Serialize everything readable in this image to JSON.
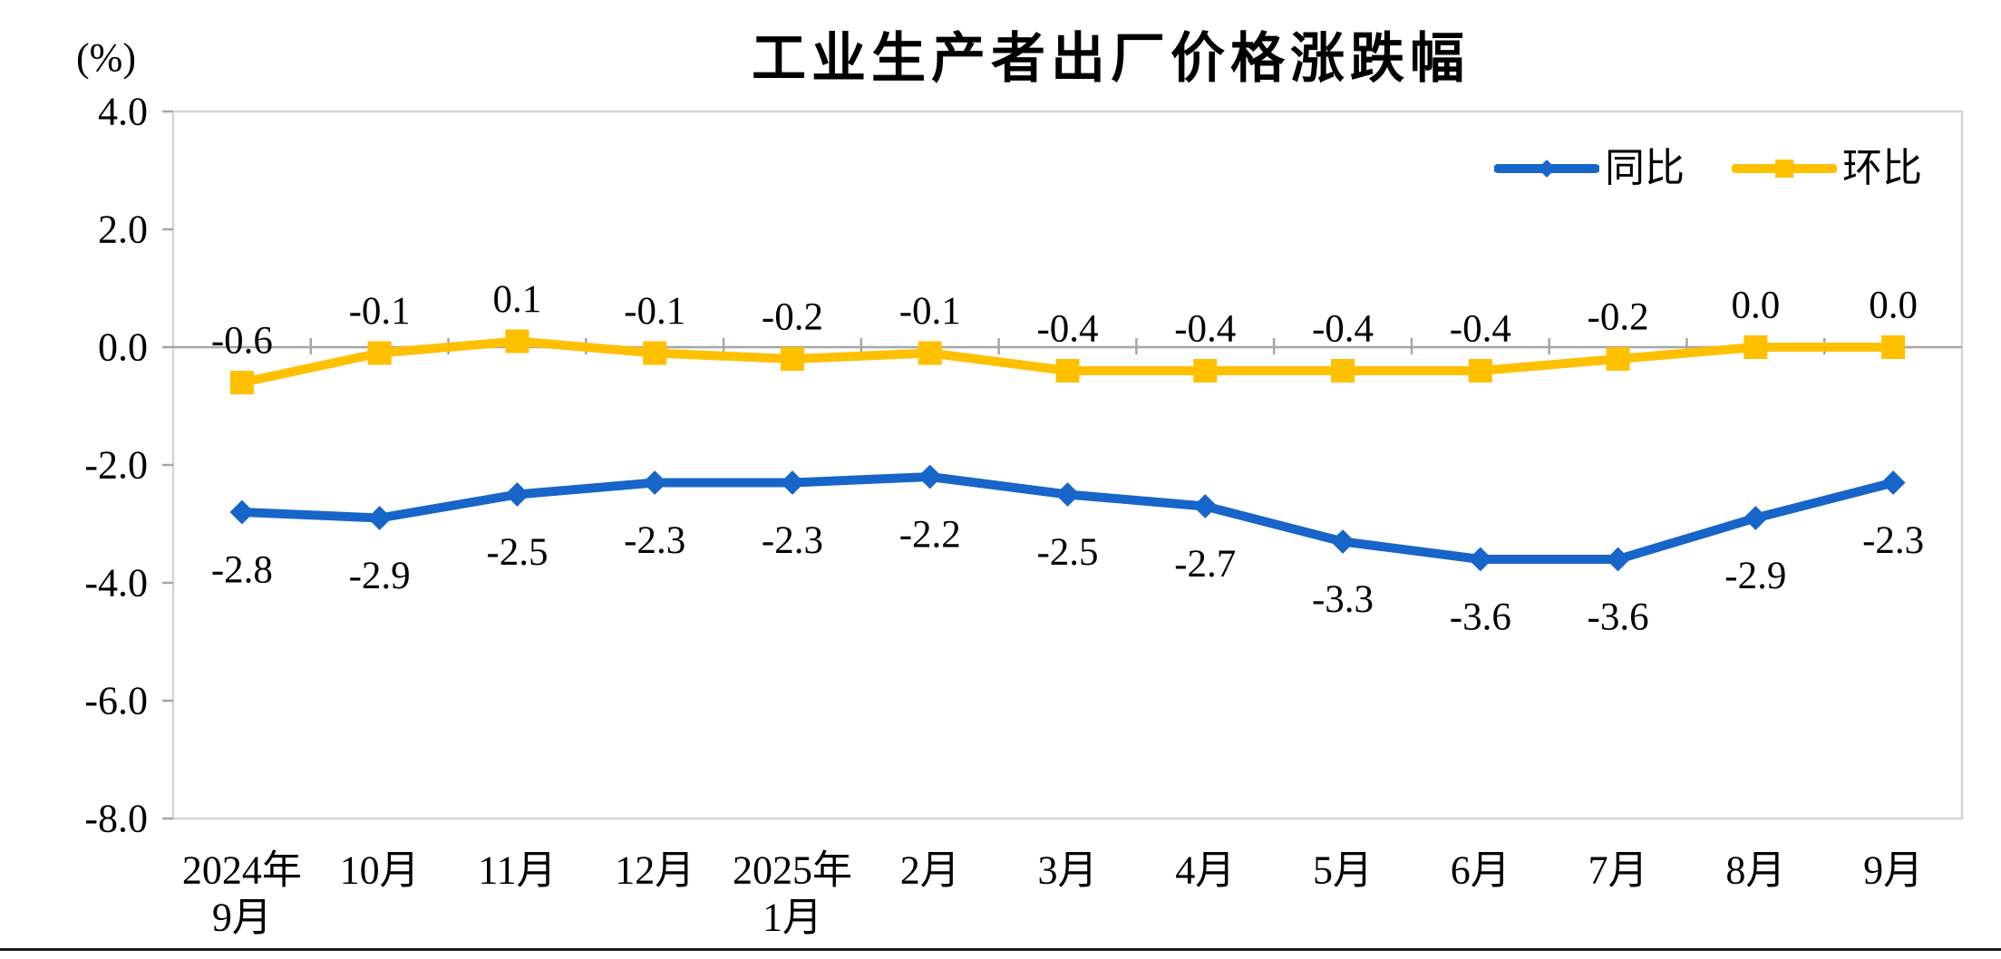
{
  "chart_data": {
    "type": "line",
    "title": "工业生产者出厂价格涨跌幅",
    "y_axis": {
      "unit": "(%)",
      "ticks": [
        "4.0",
        "2.0",
        "0.0",
        "-2.0",
        "-4.0",
        "-6.0",
        "-8.0"
      ],
      "ylim": [
        -8.0,
        4.0
      ]
    },
    "grid": "off",
    "legend_position": "top-right-inside",
    "categories": [
      {
        "lines": [
          "2024年",
          "9月"
        ]
      },
      {
        "lines": [
          "10月"
        ]
      },
      {
        "lines": [
          "11月"
        ]
      },
      {
        "lines": [
          "12月"
        ]
      },
      {
        "lines": [
          "2025年",
          "1月"
        ]
      },
      {
        "lines": [
          "2月"
        ]
      },
      {
        "lines": [
          "3月"
        ]
      },
      {
        "lines": [
          "4月"
        ]
      },
      {
        "lines": [
          "5月"
        ]
      },
      {
        "lines": [
          "6月"
        ]
      },
      {
        "lines": [
          "7月"
        ]
      },
      {
        "lines": [
          "8月"
        ]
      },
      {
        "lines": [
          "9月"
        ]
      }
    ],
    "series": [
      {
        "name": "同比",
        "color": "#1765C8",
        "marker": "diamond",
        "label_position": "below",
        "values": [
          -2.8,
          -2.9,
          -2.5,
          -2.3,
          -2.3,
          -2.2,
          -2.5,
          -2.7,
          -3.3,
          -3.6,
          -3.6,
          -2.9,
          -2.3
        ],
        "labels": [
          "-2.8",
          "-2.9",
          "-2.5",
          "-2.3",
          "-2.3",
          "-2.2",
          "-2.5",
          "-2.7",
          "-3.3",
          "-3.6",
          "-3.6",
          "-2.9",
          "-2.3"
        ]
      },
      {
        "name": "环比",
        "color": "#FFC000",
        "marker": "square",
        "label_position": "above",
        "values": [
          -0.6,
          -0.1,
          0.1,
          -0.1,
          -0.2,
          -0.1,
          -0.4,
          -0.4,
          -0.4,
          -0.4,
          -0.2,
          0.0,
          0.0
        ],
        "labels": [
          "-0.6",
          "-0.1",
          "0.1",
          "-0.1",
          "-0.2",
          "-0.1",
          "-0.4",
          "-0.4",
          "-0.4",
          "-0.4",
          "-0.2",
          "0.0",
          "0.0"
        ]
      }
    ],
    "colors": {
      "plot_border": "#D5D5D5",
      "zero_axis": "#A6A6A6",
      "tick": "#A6A6A6",
      "text": "#000000",
      "bottom_rule": "#1A1A1A"
    }
  }
}
